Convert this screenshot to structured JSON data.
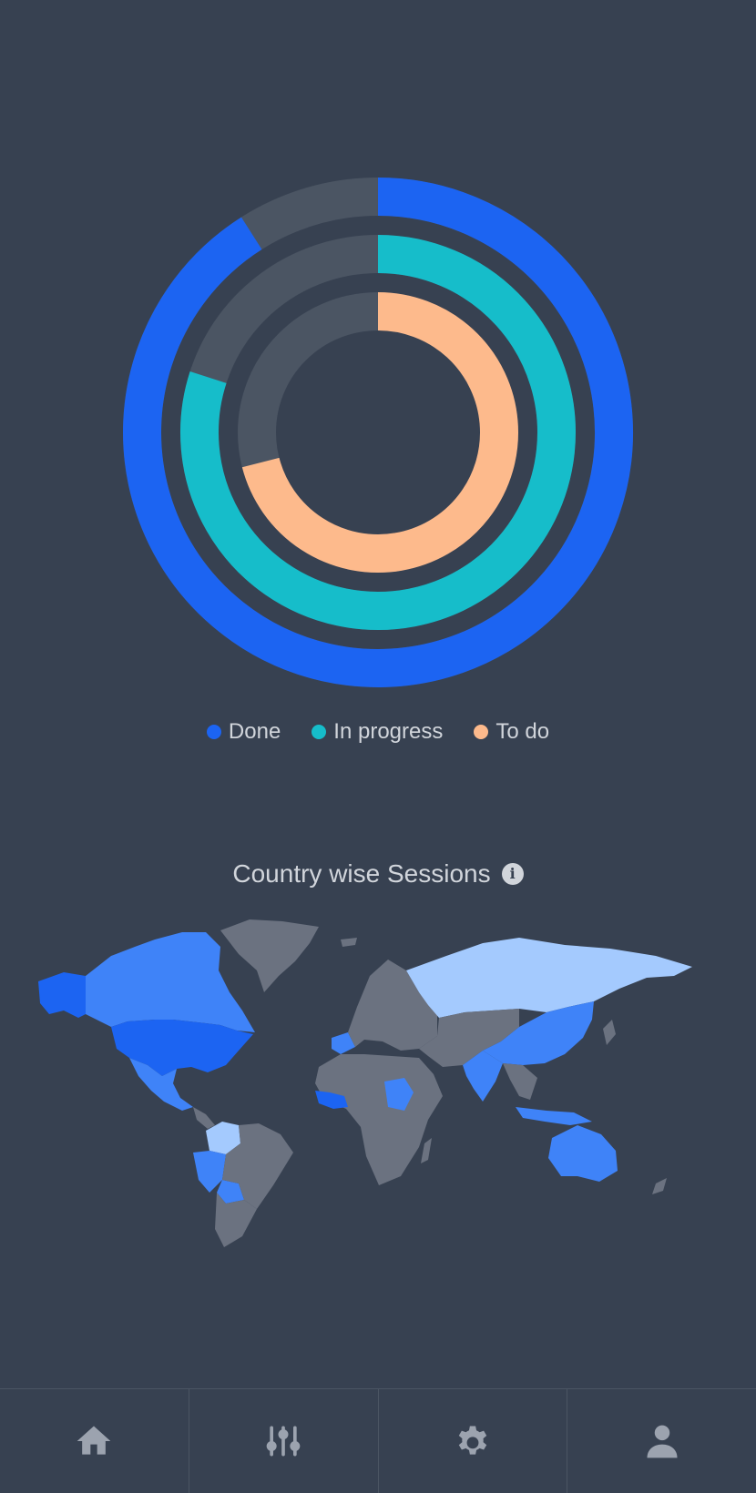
{
  "chart_data": [
    {
      "type": "radial-bar",
      "series": [
        {
          "name": "Done",
          "value": 91,
          "max": 100,
          "color": "#1c64f2"
        },
        {
          "name": "In progress",
          "value": 80,
          "max": 100,
          "color": "#16bdca"
        },
        {
          "name": "To do",
          "value": 71,
          "max": 100,
          "color": "#fdba8c"
        }
      ],
      "track_color": "#4b5563",
      "legend_position": "bottom"
    },
    {
      "type": "choropleth",
      "title": "Country wise Sessions",
      "regions": [
        {
          "name": "Alaska",
          "level": "high"
        },
        {
          "name": "Canada",
          "level": "medium"
        },
        {
          "name": "United States",
          "level": "high"
        },
        {
          "name": "Mexico",
          "level": "medium"
        },
        {
          "name": "Greenland",
          "level": "none"
        },
        {
          "name": "Colombia",
          "level": "low"
        },
        {
          "name": "Peru",
          "level": "medium"
        },
        {
          "name": "Bolivia",
          "level": "medium"
        },
        {
          "name": "Brazil",
          "level": "none"
        },
        {
          "name": "Argentina",
          "level": "none"
        },
        {
          "name": "Spain",
          "level": "medium"
        },
        {
          "name": "Europe",
          "level": "none"
        },
        {
          "name": "Russia",
          "level": "low"
        },
        {
          "name": "China",
          "level": "medium"
        },
        {
          "name": "India",
          "level": "medium"
        },
        {
          "name": "Africa",
          "level": "none"
        },
        {
          "name": "West Africa",
          "level": "high"
        },
        {
          "name": "Sudan",
          "level": "medium"
        },
        {
          "name": "Indonesia",
          "level": "medium"
        },
        {
          "name": "Australia",
          "level": "medium"
        }
      ],
      "colors": {
        "none": "#6b7280",
        "low": "#a4cafe",
        "medium": "#3f83f8",
        "high": "#1c64f2"
      }
    }
  ],
  "map_title": "Country wise Sessions",
  "nav": {
    "items": [
      {
        "name": "home",
        "icon": "home-icon"
      },
      {
        "name": "adjustments",
        "icon": "sliders-icon"
      },
      {
        "name": "settings",
        "icon": "gear-icon"
      },
      {
        "name": "profile",
        "icon": "user-icon"
      }
    ],
    "icon_color": "#9ca3af"
  }
}
